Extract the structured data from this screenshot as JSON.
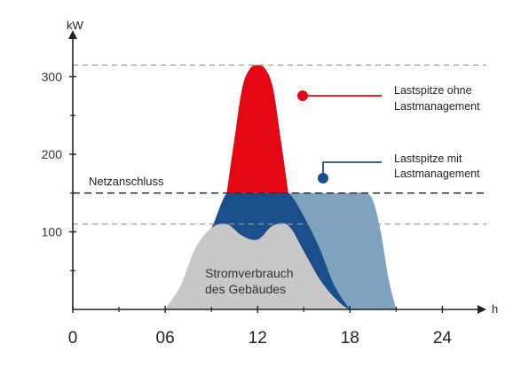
{
  "chart_data": {
    "type": "area",
    "xlabel": "h",
    "ylabel": "kW",
    "xlim": [
      0,
      26
    ],
    "ylim": [
      0,
      340
    ],
    "x_ticks": [
      "0",
      "06",
      "12",
      "18",
      "24"
    ],
    "y_ticks": [
      "100",
      "200",
      "300"
    ],
    "grid": false,
    "reference_lines": [
      {
        "label": "Netzanschluss",
        "value": 150,
        "style": "dashed-dark"
      },
      {
        "value": 110,
        "style": "dashed-light"
      },
      {
        "value": 315,
        "style": "dashed-light"
      }
    ],
    "series": [
      {
        "name": "Stromverbrauch des Gebäudes",
        "color": "#c8c8c8",
        "x": [
          6,
          7,
          8,
          9,
          10,
          11,
          12,
          13,
          14,
          15,
          16,
          17,
          18,
          19,
          20,
          21
        ],
        "y": [
          0,
          30,
          80,
          105,
          110,
          95,
          90,
          108,
          108,
          75,
          40,
          15,
          0,
          0,
          0,
          0
        ]
      },
      {
        "color": "#1a4f8b",
        "x": [
          6,
          7,
          8,
          9,
          10,
          11,
          12,
          13,
          14,
          15,
          16,
          17,
          18
        ],
        "y": [
          0,
          30,
          80,
          105,
          150,
          150,
          150,
          150,
          150,
          120,
          80,
          30,
          0
        ]
      },
      {
        "name": "Lastspitze ohne Lastmanagement",
        "color": "#e30613",
        "x": [
          10,
          10.5,
          11,
          11.5,
          12,
          12.5,
          13,
          13.5,
          14
        ],
        "y": [
          150,
          220,
          285,
          310,
          315,
          310,
          285,
          220,
          150
        ]
      },
      {
        "name": "Lastspitze mit Lastmanagement",
        "color": "#7fa2c0",
        "x": [
          14,
          15,
          16,
          17,
          18,
          19,
          19.5,
          20,
          20.5,
          21
        ],
        "y": [
          150,
          150,
          150,
          150,
          150,
          150,
          140,
          100,
          40,
          0
        ]
      }
    ],
    "annotations": [
      {
        "text_lines": [
          "Lastspitze ohne",
          "Lastmanagement"
        ],
        "color": "#e30613"
      },
      {
        "text_lines": [
          "Lastspitze mit",
          "Lastmanagement"
        ],
        "color": "#1a4f8b"
      },
      {
        "text_lines": [
          "Stromverbrauch",
          "des Gebäudes"
        ]
      }
    ]
  }
}
